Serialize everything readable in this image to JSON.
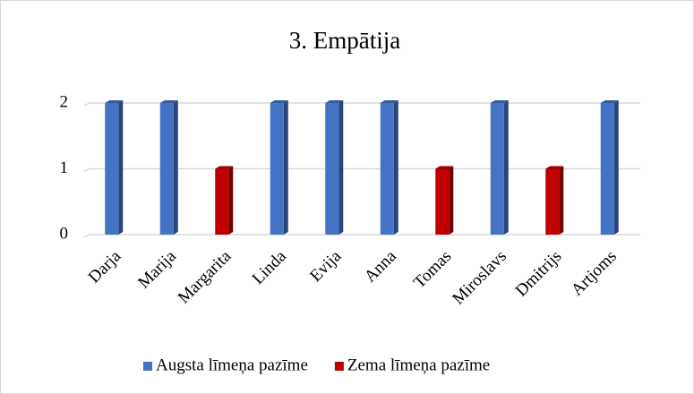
{
  "chart_data": {
    "type": "bar",
    "title": "3. Empātija",
    "categories": [
      "Darja",
      "Marija",
      "Margarita",
      "Linda",
      "Evija",
      "Anna",
      "Tomas",
      "Miroslavs",
      "Dmitrijs",
      "Artjoms"
    ],
    "series": [
      {
        "name": "Augsta līmeņa pazīme",
        "color": "#4472c4",
        "values": [
          2,
          2,
          null,
          2,
          2,
          2,
          null,
          2,
          null,
          2
        ]
      },
      {
        "name": "Zema līmeņa pazīme",
        "color": "#c00000",
        "values": [
          null,
          null,
          1,
          null,
          null,
          null,
          1,
          null,
          1,
          null
        ]
      }
    ],
    "ylim": [
      0,
      2
    ],
    "yticks": [
      0,
      1,
      2
    ],
    "grid": true,
    "legend": "bottom"
  }
}
